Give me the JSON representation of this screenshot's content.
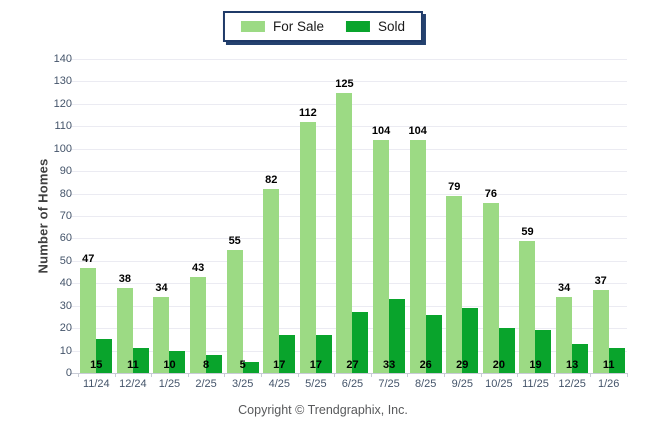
{
  "legend": {
    "items": [
      {
        "label": "For Sale",
        "color": "#9CDA84"
      },
      {
        "label": "Sold",
        "color": "#09A42C"
      }
    ]
  },
  "y_axis": {
    "title": "Number of Homes",
    "ticks": [
      0,
      10,
      20,
      30,
      40,
      50,
      60,
      70,
      80,
      90,
      100,
      110,
      120,
      130,
      140
    ]
  },
  "footer": {
    "copyright": "Copyright © Trendgraphix, Inc."
  },
  "colors": {
    "for_sale_bar": "#9CDA84",
    "sold_bar": "#09A42C",
    "gridline": "#EBEBF2",
    "axis_baseline": "#C9CCD6",
    "axis_text": "#44546A",
    "value_label_text": "#000000",
    "legend_border": "#1F3A68",
    "copyright_text": "#58595B"
  },
  "chart_data": {
    "type": "bar",
    "title": "",
    "categories": [
      "11/24",
      "12/24",
      "1/25",
      "2/25",
      "3/25",
      "4/25",
      "5/25",
      "6/25",
      "7/25",
      "8/25",
      "9/25",
      "10/25",
      "11/25",
      "12/25",
      "1/26"
    ],
    "series": [
      {
        "name": "For Sale",
        "color": "#9CDA84",
        "values": [
          47,
          38,
          34,
          43,
          55,
          82,
          112,
          125,
          104,
          104,
          79,
          76,
          59,
          34,
          37
        ]
      },
      {
        "name": "Sold",
        "color": "#09A42C",
        "values": [
          15,
          11,
          10,
          8,
          5,
          17,
          17,
          27,
          33,
          26,
          29,
          20,
          19,
          13,
          11
        ]
      }
    ],
    "xlabel": "",
    "ylabel": "Number of Homes",
    "ylim": [
      0,
      140
    ],
    "ytick_step": 10,
    "grid": true,
    "legend_position": "top-center",
    "value_labels": "For Sale values above bars; Sold values at bar base"
  }
}
